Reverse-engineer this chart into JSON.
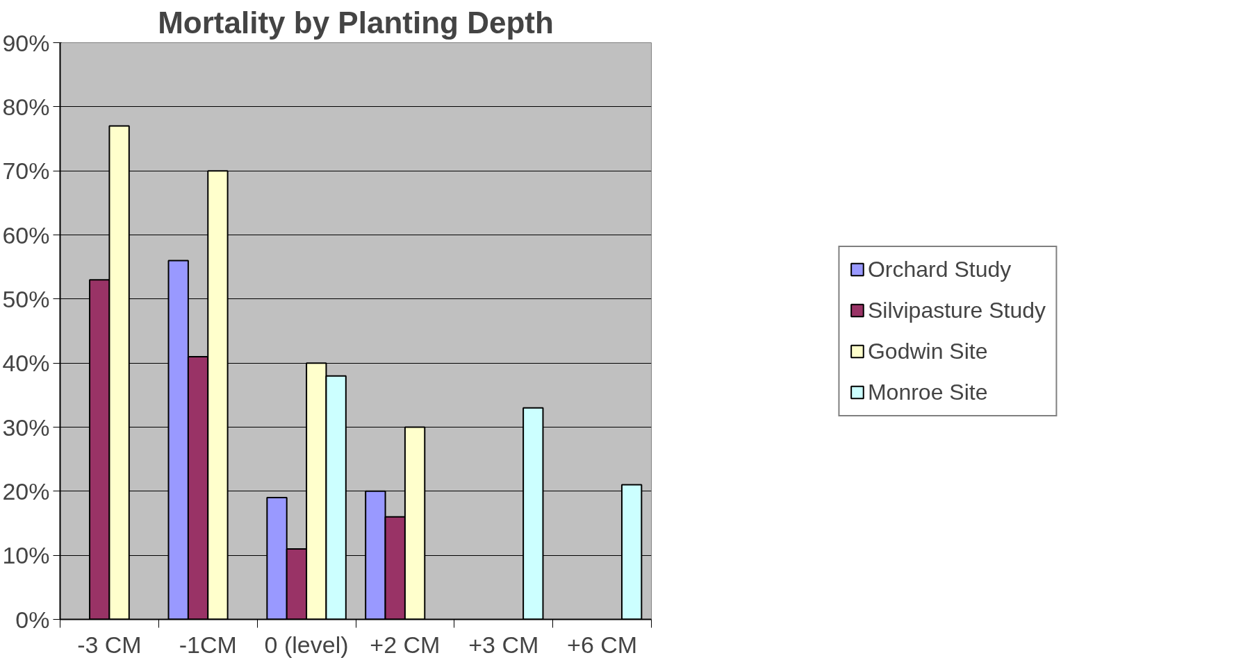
{
  "chart_data": {
    "type": "bar",
    "title": "Mortality by Planting Depth",
    "categories": [
      "-3 CM",
      "-1CM",
      "0 (level)",
      "+2 CM",
      "+3 CM",
      "+6 CM"
    ],
    "series": [
      {
        "name": "Orchard Study",
        "color": "#9999ff",
        "values": [
          null,
          56,
          19,
          20,
          null,
          null
        ]
      },
      {
        "name": "Silvipasture Study",
        "color": "#993366",
        "values": [
          53,
          41,
          11,
          16,
          null,
          null
        ]
      },
      {
        "name": "Godwin Site",
        "color": "#ffffcc",
        "values": [
          77,
          70,
          40,
          30,
          null,
          null
        ]
      },
      {
        "name": "Monroe Site",
        "color": "#ccffff",
        "values": [
          null,
          null,
          38,
          null,
          33,
          21
        ]
      }
    ],
    "ylim": [
      0,
      90
    ],
    "yticks": [
      {
        "value": 0,
        "label": "0%"
      },
      {
        "value": 10,
        "label": "10%"
      },
      {
        "value": 20,
        "label": "20%"
      },
      {
        "value": 30,
        "label": "30%"
      },
      {
        "value": 40,
        "label": "40%"
      },
      {
        "value": 50,
        "label": "50%"
      },
      {
        "value": 60,
        "label": "60%"
      },
      {
        "value": 70,
        "label": "70%"
      },
      {
        "value": 80,
        "label": "80%"
      },
      {
        "value": 90,
        "label": "90%"
      }
    ],
    "grid": "y",
    "legend": "right"
  }
}
